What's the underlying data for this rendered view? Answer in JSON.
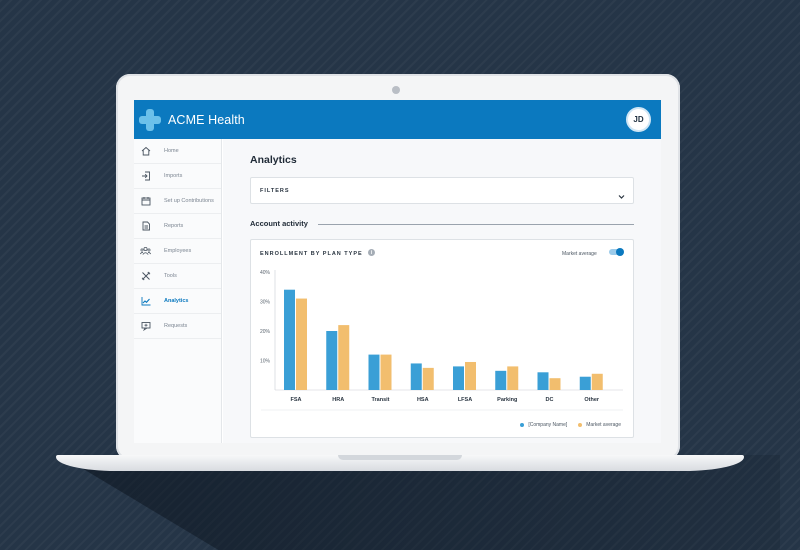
{
  "app": {
    "title": "ACME Health",
    "user_initials": "JD"
  },
  "sidebar": {
    "items": [
      {
        "label": "Home",
        "icon": "home-icon",
        "active": false
      },
      {
        "label": "Imports",
        "icon": "import-icon",
        "active": false
      },
      {
        "label": "Set up Contributions",
        "icon": "calendar-icon",
        "active": false
      },
      {
        "label": "Reports",
        "icon": "report-icon",
        "active": false
      },
      {
        "label": "Employees",
        "icon": "employees-icon",
        "active": false
      },
      {
        "label": "Tools",
        "icon": "tools-icon",
        "active": false
      },
      {
        "label": "Analytics",
        "icon": "analytics-icon",
        "active": true
      },
      {
        "label": "Requests",
        "icon": "requests-icon",
        "active": false
      }
    ]
  },
  "main": {
    "page_title": "Analytics",
    "filters_label": "FILTERS",
    "section_title": "Account activity",
    "card": {
      "title": "ENROLLMENT BY PLAN TYPE",
      "toggle_label": "Market average",
      "toggle_on": true
    }
  },
  "colors": {
    "primary": "#0b79bf",
    "series_company": "#3a9fd6",
    "series_market": "#f2be6e"
  },
  "chart_data": {
    "type": "bar",
    "title": "ENROLLMENT BY PLAN TYPE",
    "categories": [
      "FSA",
      "HRA",
      "Transit",
      "HSA",
      "LFSA",
      "Parking",
      "DC",
      "Other"
    ],
    "series": [
      {
        "name": "[Company Name]",
        "values": [
          34,
          20,
          12,
          9,
          8,
          6.5,
          6,
          4.5
        ]
      },
      {
        "name": "Market average",
        "values": [
          31,
          22,
          12,
          7.5,
          9.5,
          8,
          4,
          5.5
        ]
      }
    ],
    "yticks": [
      "40%",
      "30%",
      "20%",
      "10%"
    ],
    "ylim": [
      0,
      40
    ],
    "legend": "bottom-right",
    "grid": false
  }
}
